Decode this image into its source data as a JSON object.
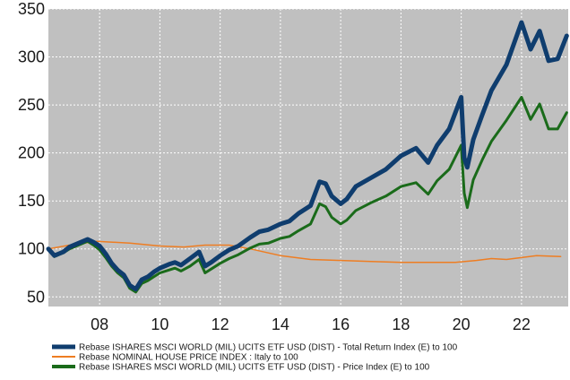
{
  "chart_data": {
    "type": "line",
    "title": "",
    "xlabel": "",
    "ylabel": "",
    "xlim": [
      2006.3,
      2023.55
    ],
    "ylim": [
      40,
      350
    ],
    "yticks": [
      50,
      100,
      150,
      200,
      250,
      300,
      350
    ],
    "xticks": [
      2008,
      2010,
      2012,
      2014,
      2016,
      2018,
      2020,
      2022
    ],
    "xtick_labels": [
      "08",
      "10",
      "12",
      "14",
      "16",
      "18",
      "20",
      "22"
    ],
    "grid": true,
    "legend_position": "bottom",
    "plot_background": "#c0c0c0",
    "series": [
      {
        "name": "Rebase ISHARES MSCI WORLD (MIL) UCITS ETF USD (DIST) - Total Return Index (E) to 100",
        "color": "#0f3d6e",
        "x": [
          2006.3,
          2006.5,
          2006.8,
          2007.0,
          2007.3,
          2007.6,
          2007.8,
          2008.0,
          2008.2,
          2008.4,
          2008.6,
          2008.8,
          2009.0,
          2009.2,
          2009.4,
          2009.6,
          2009.8,
          2010.0,
          2010.3,
          2010.5,
          2010.7,
          2011.0,
          2011.3,
          2011.5,
          2011.7,
          2012.0,
          2012.3,
          2012.6,
          2013.0,
          2013.3,
          2013.6,
          2014.0,
          2014.3,
          2014.6,
          2015.0,
          2015.3,
          2015.5,
          2015.7,
          2016.0,
          2016.2,
          2016.5,
          2017.0,
          2017.5,
          2018.0,
          2018.5,
          2018.9,
          2019.2,
          2019.6,
          2020.0,
          2020.1,
          2020.2,
          2020.4,
          2020.7,
          2021.0,
          2021.5,
          2022.0,
          2022.3,
          2022.6,
          2022.9,
          2023.2,
          2023.5
        ],
        "values": [
          100,
          93,
          97,
          102,
          106,
          110,
          107,
          103,
          95,
          85,
          78,
          73,
          62,
          58,
          68,
          71,
          76,
          80,
          84,
          86,
          83,
          90,
          97,
          82,
          86,
          93,
          99,
          103,
          112,
          118,
          120,
          126,
          129,
          137,
          145,
          170,
          168,
          155,
          147,
          152,
          165,
          174,
          183,
          197,
          205,
          190,
          208,
          225,
          258,
          195,
          185,
          214,
          240,
          265,
          292,
          336,
          308,
          327,
          296,
          298,
          322
        ]
      },
      {
        "name": "Rebase NOMINAL HOUSE PRICE INDEX : Italy to 100",
        "color": "#ee7d22",
        "x": [
          2006.3,
          2007.0,
          2007.9,
          2009.0,
          2010.0,
          2010.8,
          2011.5,
          2012.3,
          2013.0,
          2014.0,
          2015.0,
          2016.0,
          2017.0,
          2018.0,
          2019.0,
          2019.8,
          2020.5,
          2021.0,
          2021.5,
          2022.0,
          2022.5,
          2023.3
        ],
        "values": [
          100,
          104,
          108,
          106,
          103,
          102,
          104,
          104,
          100,
          93,
          89,
          88,
          87,
          86,
          86,
          86,
          88,
          90,
          89,
          91,
          93,
          92
        ]
      },
      {
        "name": "Rebase ISHARES MSCI WORLD (MIL) UCITS ETF USD (DIST) - Price Index (E) to 100",
        "color": "#1a6b1a",
        "x": [
          2006.3,
          2006.5,
          2006.8,
          2007.0,
          2007.3,
          2007.6,
          2007.8,
          2008.0,
          2008.2,
          2008.4,
          2008.6,
          2008.8,
          2009.0,
          2009.2,
          2009.4,
          2009.6,
          2009.8,
          2010.0,
          2010.3,
          2010.5,
          2010.7,
          2011.0,
          2011.3,
          2011.5,
          2011.7,
          2012.0,
          2012.3,
          2012.6,
          2013.0,
          2013.3,
          2013.6,
          2014.0,
          2014.3,
          2014.6,
          2015.0,
          2015.3,
          2015.5,
          2015.7,
          2016.0,
          2016.2,
          2016.5,
          2017.0,
          2017.5,
          2018.0,
          2018.5,
          2018.9,
          2019.2,
          2019.6,
          2020.0,
          2020.1,
          2020.2,
          2020.4,
          2020.7,
          2021.0,
          2021.5,
          2022.0,
          2022.3,
          2022.6,
          2022.9,
          2023.2,
          2023.5
        ],
        "values": [
          100,
          92,
          96,
          100,
          104,
          108,
          104,
          99,
          91,
          82,
          75,
          70,
          59,
          55,
          64,
          67,
          71,
          75,
          78,
          80,
          77,
          82,
          89,
          75,
          79,
          85,
          90,
          94,
          101,
          105,
          106,
          111,
          113,
          119,
          126,
          147,
          144,
          133,
          126,
          130,
          140,
          148,
          155,
          165,
          169,
          157,
          171,
          183,
          208,
          158,
          143,
          172,
          193,
          212,
          234,
          258,
          235,
          251,
          225,
          225,
          242
        ]
      }
    ]
  }
}
